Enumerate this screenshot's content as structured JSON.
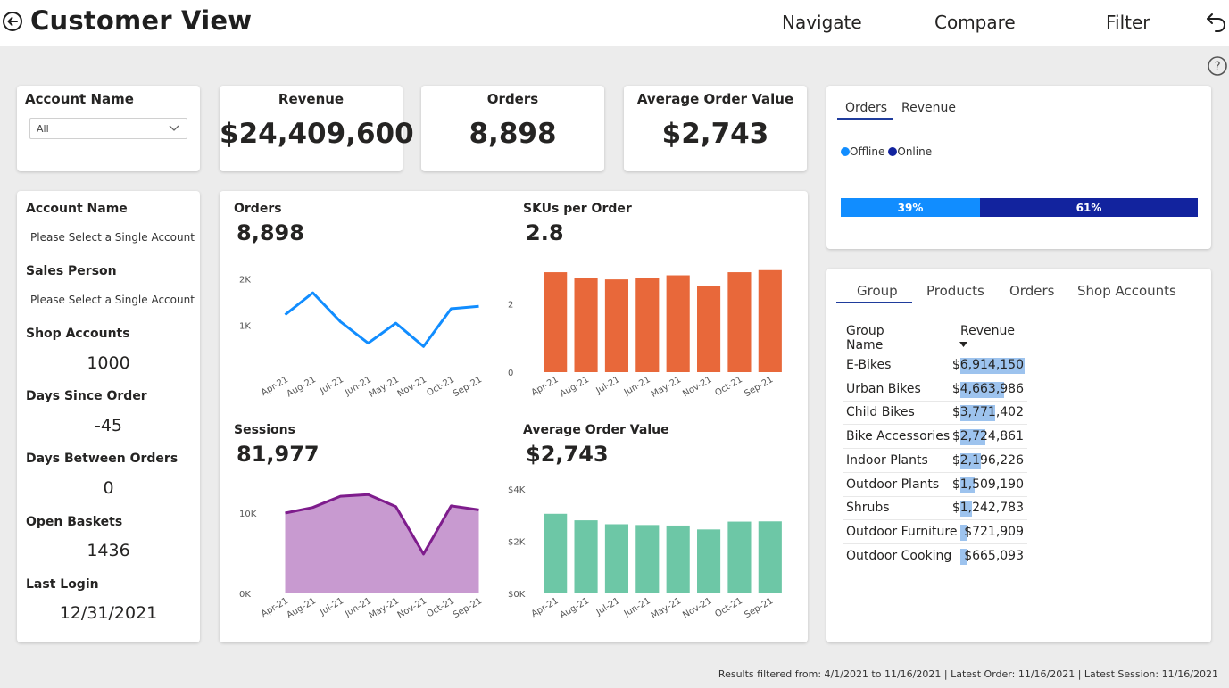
{
  "header": {
    "title": "Customer View",
    "nav": [
      "Navigate",
      "Compare",
      "Filter"
    ]
  },
  "slicer": {
    "title": "Account Name",
    "value": "All"
  },
  "kpis": [
    {
      "title": "Revenue",
      "value": "$24,409,600"
    },
    {
      "title": "Orders",
      "value": "8,898"
    },
    {
      "title": "Average Order Value",
      "value": "$2,743"
    }
  ],
  "account_info": [
    {
      "label": "Account Name",
      "value": "Please Select a Single Account",
      "style": "small"
    },
    {
      "label": "Sales Person",
      "value": "Please Select a Single Account",
      "style": "small"
    },
    {
      "label": "Shop Accounts",
      "value": "1000",
      "style": "big"
    },
    {
      "label": "Days Since Order",
      "value": "-45",
      "style": "big"
    },
    {
      "label": "Days Between Orders",
      "value": "0",
      "style": "big"
    },
    {
      "label": "Open Baskets",
      "value": "1436",
      "style": "big"
    },
    {
      "label": "Last Login",
      "value": "12/31/2021",
      "style": "big"
    }
  ],
  "charts": {
    "orders": {
      "label": "Orders",
      "value": "8,898"
    },
    "skus": {
      "label": "SKUs per Order",
      "value": "2.8"
    },
    "sessions": {
      "label": "Sessions",
      "value": "81,977"
    },
    "aov": {
      "label": "Average Order Value",
      "value": "$2,743"
    }
  },
  "channel_card": {
    "tabs": [
      "Orders",
      "Revenue"
    ],
    "legend": [
      "Offline",
      "Online"
    ],
    "segments": [
      {
        "label": "39%",
        "fraction": 0.39,
        "color": "#118dff"
      },
      {
        "label": "61%",
        "fraction": 0.61,
        "color": "#12239e"
      }
    ]
  },
  "group_card": {
    "tabs": [
      "Group",
      "Products",
      "Orders",
      "Shop Accounts"
    ],
    "columns": [
      "Group Name",
      "Revenue"
    ],
    "rows": [
      {
        "name": "E-Bikes",
        "revenue": "$6,914,150",
        "fraction": 1.0
      },
      {
        "name": "Urban Bikes",
        "revenue": "$4,663,986",
        "fraction": 0.675
      },
      {
        "name": "Child Bikes",
        "revenue": "$3,771,402",
        "fraction": 0.545
      },
      {
        "name": "Bike Accessories",
        "revenue": "$2,724,861",
        "fraction": 0.394
      },
      {
        "name": "Indoor Plants",
        "revenue": "$2,196,226",
        "fraction": 0.318
      },
      {
        "name": "Outdoor Plants",
        "revenue": "$1,509,190",
        "fraction": 0.218
      },
      {
        "name": "Shrubs",
        "revenue": "$1,242,783",
        "fraction": 0.18
      },
      {
        "name": "Outdoor Furniture",
        "revenue": "$721,909",
        "fraction": 0.104
      },
      {
        "name": "Outdoor Cooking",
        "revenue": "$665,093",
        "fraction": 0.096
      }
    ]
  },
  "footer": "Results filtered from: 4/1/2021 to 11/16/2021  |  Latest Order: 11/16/2021  |  Latest Session: 11/16/2021",
  "chart_data": [
    {
      "type": "line",
      "title": "Orders",
      "categories": [
        "Apr-21",
        "Aug-21",
        "Jul-21",
        "Jun-21",
        "May-21",
        "Nov-21",
        "Oct-21",
        "Sep-21"
      ],
      "series": [
        {
          "values": [
            1230,
            1700,
            1080,
            620,
            1050,
            550,
            1360,
            1410
          ],
          "color": "#118dff"
        }
      ],
      "yticks": [
        "2K",
        "1K"
      ],
      "ylim": [
        0,
        2200
      ]
    },
    {
      "type": "bar",
      "title": "SKUs per Order",
      "categories": [
        "Apr-21",
        "Aug-21",
        "Jul-21",
        "Jun-21",
        "May-21",
        "Nov-21",
        "Oct-21",
        "Sep-21"
      ],
      "values": [
        2.92,
        2.75,
        2.71,
        2.76,
        2.83,
        2.51,
        2.92,
        2.98
      ],
      "color": "#e8683a",
      "yticks": [
        "2",
        "0"
      ],
      "ylim": [
        0,
        3.0
      ]
    },
    {
      "type": "area",
      "title": "Sessions",
      "categories": [
        "Apr-21",
        "Aug-21",
        "Jul-21",
        "Jun-21",
        "May-21",
        "Nov-21",
        "Oct-21",
        "Sep-21"
      ],
      "series": [
        {
          "values": [
            10000,
            10700,
            12100,
            12300,
            10800,
            4900,
            10900,
            10400
          ],
          "color": "#7e1c8c",
          "fill": "#c89ad0"
        }
      ],
      "yticks": [
        "10K",
        "0K"
      ],
      "ylim": [
        0,
        13000
      ]
    },
    {
      "type": "bar",
      "title": "Average Order Value",
      "categories": [
        "Apr-21",
        "Aug-21",
        "Jul-21",
        "Jun-21",
        "May-21",
        "Nov-21",
        "Oct-21",
        "Sep-21"
      ],
      "values": [
        3050,
        2800,
        2650,
        2620,
        2600,
        2450,
        2750,
        2760
      ],
      "color": "#6dc7a6",
      "yticks": [
        "$4K",
        "$2K",
        "$0K"
      ],
      "ylim": [
        0,
        4000
      ]
    }
  ]
}
